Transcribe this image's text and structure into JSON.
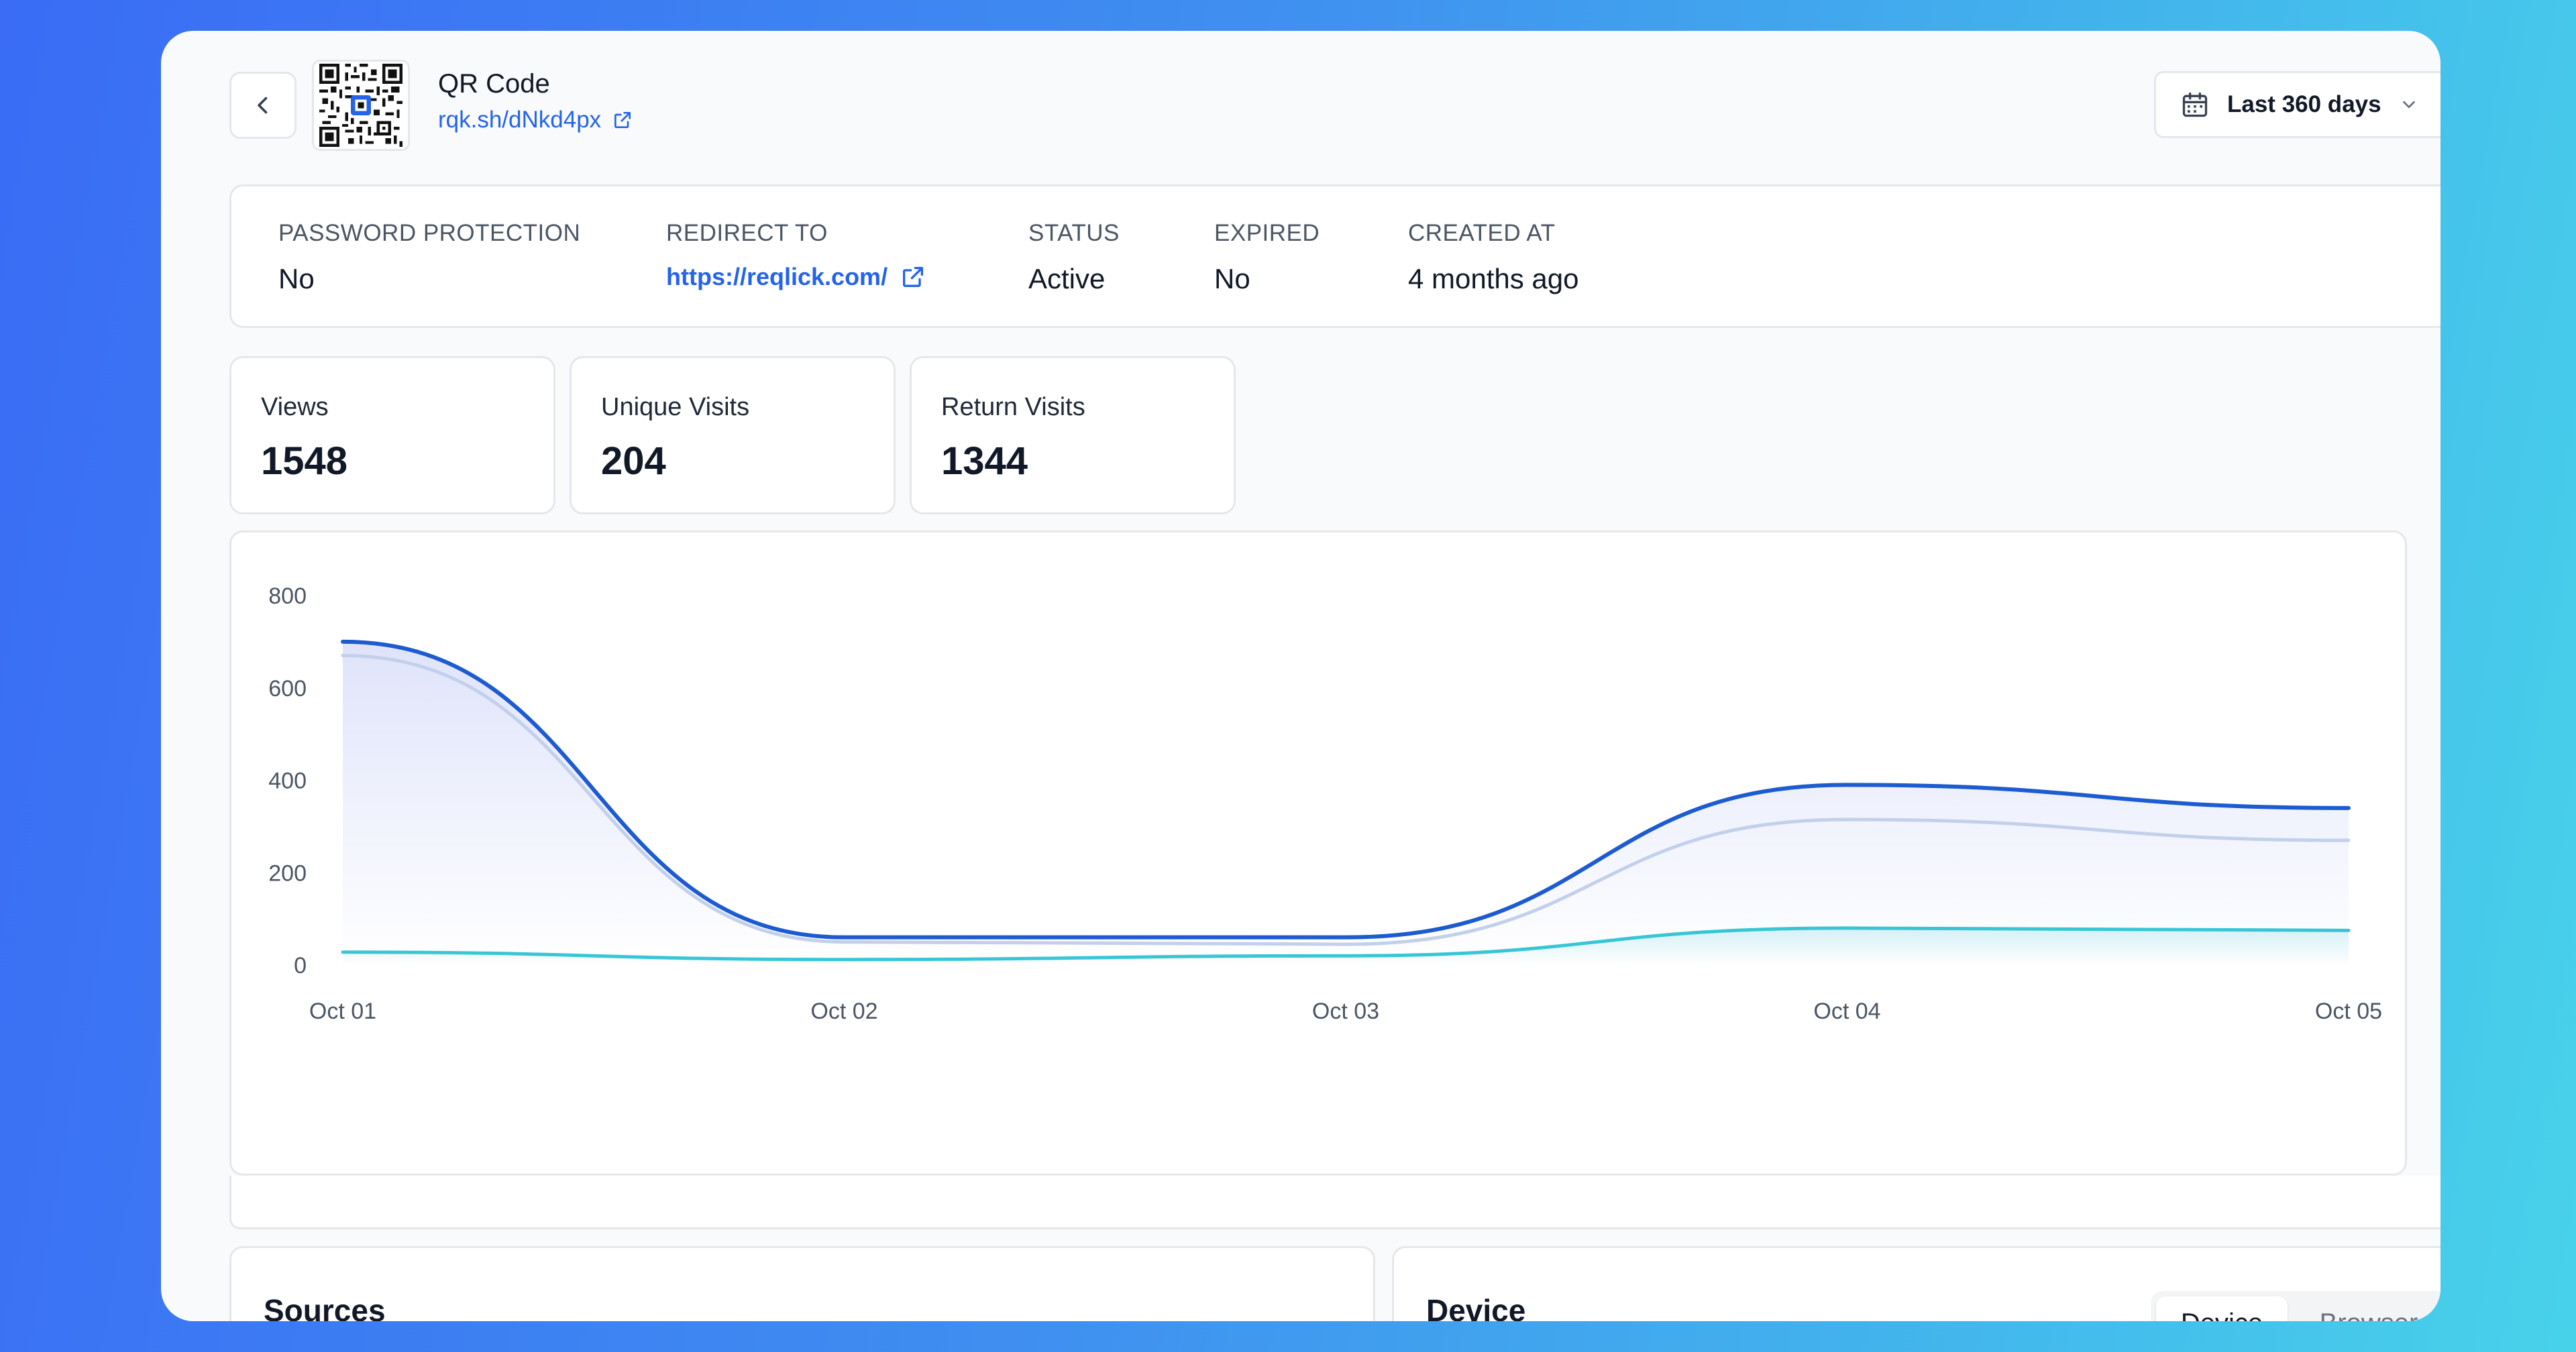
{
  "header": {
    "title": "QR Code",
    "short_link": "rqk.sh/dNkd4px",
    "date_range": "Last 360 days"
  },
  "info": {
    "password_protection": {
      "label": "PASSWORD PROTECTION",
      "value": "No"
    },
    "redirect_to": {
      "label": "REDIRECT TO",
      "value": "https://reqlick.com/"
    },
    "status": {
      "label": "STATUS",
      "value": "Active"
    },
    "expired": {
      "label": "EXPIRED",
      "value": "No"
    },
    "created_at": {
      "label": "CREATED AT",
      "value": "4 months ago"
    }
  },
  "stats": [
    {
      "label": "Views",
      "value": "1548"
    },
    {
      "label": "Unique Visits",
      "value": "204"
    },
    {
      "label": "Return Visits",
      "value": "1344"
    }
  ],
  "chart_data": {
    "type": "area",
    "x": [
      "Oct 01",
      "Oct 02",
      "Oct 03",
      "Oct 04",
      "Oct 05"
    ],
    "yticks": [
      0,
      200,
      400,
      600,
      800
    ],
    "ylim": [
      0,
      800
    ],
    "grid": false,
    "series": [
      {
        "values": [
          700,
          60,
          60,
          390,
          340
        ],
        "color": "#1d5bd1"
      },
      {
        "values": [
          670,
          50,
          45,
          315,
          270
        ],
        "color": "#c2d0ec"
      },
      {
        "values": [
          28,
          12,
          20,
          80,
          75
        ],
        "color": "#38c6d6"
      }
    ]
  },
  "bottom": {
    "sources_title": "Sources",
    "device_title": "Device",
    "tabs": [
      "Device",
      "Browser"
    ]
  },
  "icons": {
    "back": "chevron-left-icon",
    "external": "external-link-icon",
    "calendar": "calendar-icon",
    "dropdown": "chevron-down-icon"
  }
}
